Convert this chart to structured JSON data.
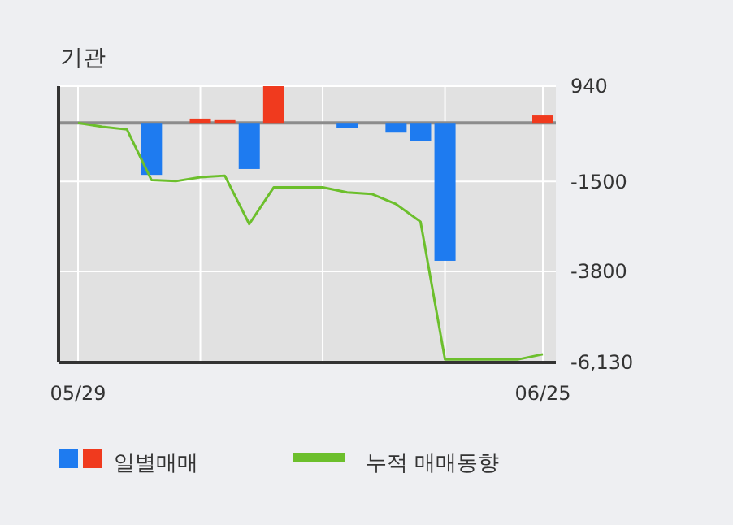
{
  "chart_data": {
    "type": "bar",
    "title": "기관",
    "categories": [
      "05/29",
      null,
      null,
      null,
      null,
      null,
      null,
      null,
      null,
      null,
      null,
      null,
      null,
      null,
      null,
      null,
      null,
      null,
      null,
      "06/25"
    ],
    "series": [
      {
        "name": "일별매매",
        "values": [
          0,
          0,
          0,
          -1330,
          0,
          110,
          70,
          -1180,
          940,
          0,
          0,
          -140,
          0,
          -250,
          -460,
          -3530,
          0,
          0,
          0,
          190
        ],
        "colors": [
          "#1e7bf0",
          "#1e7bf0",
          "#1e7bf0",
          "#1e7bf0",
          "#1e7bf0",
          "#f03a1e",
          "#f03a1e",
          "#1e7bf0",
          "#f03a1e",
          "#1e7bf0",
          "#1e7bf0",
          "#1e7bf0",
          "#1e7bf0",
          "#1e7bf0",
          "#1e7bf0",
          "#1e7bf0",
          "#1e7bf0",
          "#1e7bf0",
          "#1e7bf0",
          "#f03a1e"
        ]
      },
      {
        "name": "누적 매매동향",
        "type": "line",
        "color": "#6cbf2c",
        "values": [
          0,
          -100,
          -170,
          -1460,
          -1490,
          -1390,
          -1350,
          -2590,
          -1650,
          -1650,
          -1650,
          -1780,
          -1820,
          -2080,
          -2530,
          -6050,
          -6050,
          -6050,
          -6050,
          -5920
        ]
      }
    ],
    "ylim": [
      -6130,
      940
    ],
    "yticks": [
      940,
      -1500,
      -3800,
      {
        "value": -6130,
        "label": "-6,130"
      }
    ],
    "ref_lines": [
      {
        "axis": "y",
        "value": 0,
        "color": "#8c8c8c"
      }
    ],
    "grid": true,
    "legend": "bottom"
  }
}
